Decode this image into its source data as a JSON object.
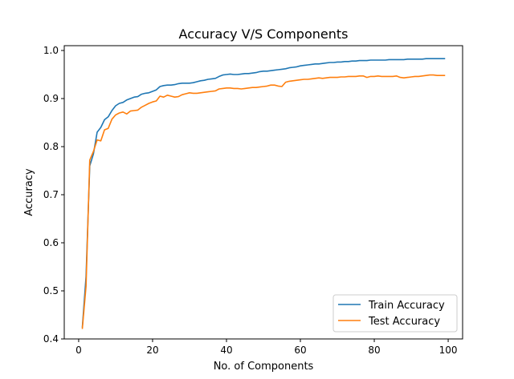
{
  "chart_data": {
    "type": "line",
    "title": "Accuracy V/S Components",
    "xlabel": "No. of Components",
    "ylabel": "Accuracy",
    "xlim": [
      -3.9,
      103.9
    ],
    "ylim": [
      0.4,
      1.01
    ],
    "xticks": [
      0,
      20,
      40,
      60,
      80,
      100
    ],
    "yticks": [
      0.4,
      0.5,
      0.6,
      0.7,
      0.8,
      0.9,
      1.0
    ],
    "xtick_labels": [
      "0",
      "20",
      "40",
      "60",
      "80",
      "100"
    ],
    "ytick_labels": [
      "0.4",
      "0.5",
      "0.6",
      "0.7",
      "0.8",
      "0.9",
      "1.0"
    ],
    "grid": false,
    "legend_position": "bottom-right",
    "x": [
      1,
      2,
      3,
      4,
      5,
      6,
      7,
      8,
      9,
      10,
      11,
      12,
      13,
      14,
      15,
      16,
      17,
      18,
      19,
      20,
      21,
      22,
      23,
      24,
      25,
      26,
      27,
      28,
      29,
      30,
      31,
      32,
      33,
      34,
      35,
      36,
      37,
      38,
      39,
      40,
      41,
      42,
      43,
      44,
      45,
      46,
      47,
      48,
      49,
      50,
      51,
      52,
      53,
      54,
      55,
      56,
      57,
      58,
      59,
      60,
      61,
      62,
      63,
      64,
      65,
      66,
      67,
      68,
      69,
      70,
      71,
      72,
      73,
      74,
      75,
      76,
      77,
      78,
      79,
      80,
      81,
      82,
      83,
      84,
      85,
      86,
      87,
      88,
      89,
      90,
      91,
      92,
      93,
      94,
      95,
      96,
      97,
      98,
      99
    ],
    "series": [
      {
        "name": "Train Accuracy",
        "color": "#1f77b4",
        "values": [
          0.425,
          0.53,
          0.76,
          0.785,
          0.83,
          0.84,
          0.856,
          0.862,
          0.875,
          0.885,
          0.89,
          0.892,
          0.897,
          0.9,
          0.903,
          0.904,
          0.909,
          0.911,
          0.912,
          0.915,
          0.918,
          0.925,
          0.927,
          0.928,
          0.928,
          0.929,
          0.931,
          0.932,
          0.932,
          0.932,
          0.933,
          0.935,
          0.937,
          0.938,
          0.94,
          0.941,
          0.942,
          0.946,
          0.949,
          0.95,
          0.951,
          0.95,
          0.95,
          0.951,
          0.952,
          0.952,
          0.953,
          0.954,
          0.956,
          0.957,
          0.957,
          0.958,
          0.959,
          0.96,
          0.961,
          0.962,
          0.964,
          0.965,
          0.966,
          0.968,
          0.969,
          0.97,
          0.971,
          0.972,
          0.972,
          0.973,
          0.974,
          0.975,
          0.975,
          0.976,
          0.976,
          0.977,
          0.977,
          0.978,
          0.978,
          0.979,
          0.979,
          0.979,
          0.98,
          0.98,
          0.98,
          0.98,
          0.98,
          0.981,
          0.981,
          0.981,
          0.981,
          0.981,
          0.982,
          0.982,
          0.982,
          0.982,
          0.982,
          0.983,
          0.983,
          0.983,
          0.983,
          0.983,
          0.983
        ]
      },
      {
        "name": "Test Accuracy",
        "color": "#ff7f0e",
        "values": [
          0.422,
          0.51,
          0.772,
          0.79,
          0.814,
          0.812,
          0.835,
          0.838,
          0.857,
          0.866,
          0.87,
          0.872,
          0.868,
          0.874,
          0.875,
          0.876,
          0.882,
          0.886,
          0.89,
          0.893,
          0.895,
          0.905,
          0.903,
          0.907,
          0.905,
          0.903,
          0.904,
          0.908,
          0.91,
          0.912,
          0.911,
          0.911,
          0.912,
          0.913,
          0.914,
          0.915,
          0.916,
          0.92,
          0.921,
          0.922,
          0.922,
          0.921,
          0.921,
          0.92,
          0.921,
          0.922,
          0.923,
          0.923,
          0.924,
          0.925,
          0.926,
          0.928,
          0.928,
          0.926,
          0.925,
          0.934,
          0.936,
          0.937,
          0.938,
          0.939,
          0.94,
          0.94,
          0.941,
          0.942,
          0.943,
          0.942,
          0.943,
          0.944,
          0.944,
          0.944,
          0.945,
          0.945,
          0.946,
          0.946,
          0.946,
          0.947,
          0.947,
          0.944,
          0.946,
          0.946,
          0.947,
          0.946,
          0.946,
          0.946,
          0.946,
          0.947,
          0.944,
          0.943,
          0.944,
          0.945,
          0.946,
          0.946,
          0.947,
          0.948,
          0.949,
          0.949,
          0.948,
          0.948,
          0.948
        ]
      }
    ]
  }
}
